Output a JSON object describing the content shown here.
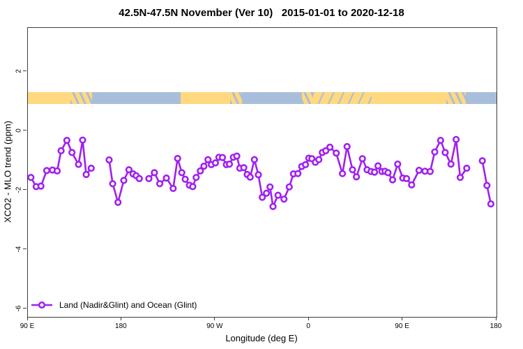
{
  "title": "42.5N-47.5N November (Ver 10)   2015-01-01 to 2020-12-18",
  "colors": {
    "series_line": "#A020F0",
    "marker_fill": "#ffffff",
    "land": "#FFD880",
    "ocean": "#A9BEDA",
    "axis": "#3d3d3d",
    "text": "#000000",
    "background": "#ffffff"
  },
  "legend": {
    "label": "Land (Nadir&Glint) and Ocean (Glint)"
  },
  "chart_data": {
    "type": "line",
    "title": "42.5N-47.5N November (Ver 10)   2015-01-01 to 2020-12-18",
    "xlabel": "Longitude (deg E)",
    "ylabel": "XCO2 - MLO trend (ppm)",
    "xlim": [
      90,
      540
    ],
    "ylim": [
      -6.26,
      3.48
    ],
    "grid": false,
    "legend_position": "bottom-left",
    "x_ticks": [
      {
        "lon": 90,
        "label": "90 E"
      },
      {
        "lon": 180,
        "label": "180"
      },
      {
        "lon": 270,
        "label": "90 W"
      },
      {
        "lon": 360,
        "label": "0"
      },
      {
        "lon": 450,
        "label": "90 E"
      },
      {
        "lon": 540,
        "label": "180"
      }
    ],
    "y_ticks": [
      {
        "value": 2,
        "label": "2"
      },
      {
        "value": 0,
        "label": "0"
      },
      {
        "value": -2,
        "label": "-2"
      },
      {
        "value": -4,
        "label": "-4"
      },
      {
        "value": -6,
        "label": "-6"
      }
    ],
    "map_band": {
      "value_top": 1.32,
      "value_bottom": 0.92,
      "segments": [
        {
          "from": 90,
          "to": 130.8,
          "type": "land"
        },
        {
          "from": 130.8,
          "to": 151.5,
          "type": "mixed"
        },
        {
          "from": 151.5,
          "to": 236.5,
          "type": "ocean"
        },
        {
          "from": 236.5,
          "to": 284.5,
          "type": "land"
        },
        {
          "from": 284.5,
          "to": 295.5,
          "type": "mixed"
        },
        {
          "from": 295.5,
          "to": 353.5,
          "type": "ocean"
        },
        {
          "from": 353.5,
          "to": 364,
          "type": "mixed"
        },
        {
          "from": 364,
          "to": 420,
          "type": "land-speckled"
        },
        {
          "from": 420,
          "to": 492,
          "type": "land"
        },
        {
          "from": 492,
          "to": 510.5,
          "type": "mixed"
        },
        {
          "from": 510.5,
          "to": 540,
          "type": "ocean"
        }
      ]
    },
    "series": [
      {
        "name": "Land (Nadir&Glint) and Ocean (Glint)",
        "marker": "open-circle",
        "points": [
          [
            92.9,
            -1.56
          ],
          [
            98.0,
            -1.87
          ],
          [
            102.5,
            -1.85
          ],
          [
            108.1,
            -1.33
          ],
          [
            113.6,
            -1.31
          ],
          [
            118.1,
            -1.34
          ],
          [
            121.9,
            -0.66
          ],
          [
            127.4,
            -0.31
          ],
          [
            132.3,
            -0.72
          ],
          [
            138.6,
            -1.12
          ],
          [
            142.6,
            -0.3
          ],
          [
            146.0,
            -1.46
          ],
          [
            150.8,
            -1.25
          ],
          null,
          [
            168.0,
            -0.97
          ],
          [
            171.4,
            -1.77
          ],
          [
            176.5,
            -2.4
          ],
          [
            182.1,
            -1.66
          ],
          [
            187.0,
            -1.3
          ],
          [
            191.0,
            -1.44
          ],
          [
            193.9,
            -1.5
          ],
          [
            197.0,
            -1.6
          ],
          null,
          [
            206.2,
            -1.6
          ],
          [
            211.5,
            -1.4
          ],
          [
            216.6,
            -1.77
          ],
          [
            223.0,
            -1.58
          ],
          [
            229.5,
            -1.93
          ],
          [
            233.8,
            -0.92
          ],
          [
            237.8,
            -1.4
          ],
          [
            241.1,
            -1.62
          ],
          [
            245.1,
            -1.82
          ],
          [
            248.3,
            -1.87
          ],
          [
            251.6,
            -1.56
          ],
          [
            255.6,
            -1.34
          ],
          [
            259.0,
            -1.18
          ],
          [
            263.0,
            -0.96
          ],
          [
            266.1,
            -1.13
          ],
          [
            270.1,
            -1.07
          ],
          [
            273.4,
            -0.88
          ],
          [
            276.8,
            -0.89
          ],
          [
            280.6,
            -1.13
          ],
          [
            283.5,
            -1.11
          ],
          [
            287.3,
            -0.88
          ],
          [
            290.6,
            -0.84
          ],
          [
            293.5,
            -1.25
          ],
          [
            297.3,
            -1.23
          ],
          [
            300.6,
            -1.46
          ],
          [
            303.5,
            -1.55
          ],
          [
            307.5,
            -0.96
          ],
          [
            311.3,
            -1.47
          ],
          [
            315.1,
            -2.23
          ],
          [
            319.1,
            -2.09
          ],
          [
            322.5,
            -1.88
          ],
          [
            325.4,
            -2.54
          ],
          [
            330.2,
            -2.16
          ],
          [
            335.9,
            -2.29
          ],
          [
            341.0,
            -1.88
          ],
          [
            345.0,
            -1.44
          ],
          [
            349.3,
            -1.43
          ],
          [
            353.0,
            -1.19
          ],
          [
            356.6,
            -1.13
          ],
          [
            359.7,
            -0.91
          ],
          [
            362.7,
            -0.93
          ],
          [
            366.0,
            -1.05
          ],
          [
            369.4,
            -0.96
          ],
          [
            372.7,
            -0.72
          ],
          [
            376.1,
            -0.66
          ],
          [
            380.0,
            -0.54
          ],
          [
            386.1,
            -0.74
          ],
          [
            392.1,
            -1.43
          ],
          [
            396.5,
            -0.52
          ],
          [
            401.7,
            -1.3
          ],
          [
            405.5,
            -1.54
          ],
          [
            411.2,
            -0.93
          ],
          [
            415.7,
            -1.3
          ],
          [
            419.5,
            -1.36
          ],
          [
            422.9,
            -1.38
          ],
          [
            426.2,
            -1.17
          ],
          [
            430.0,
            -1.36
          ],
          [
            432.9,
            -1.35
          ],
          [
            435.8,
            -1.4
          ],
          [
            440.2,
            -1.64
          ],
          [
            445.1,
            -1.11
          ],
          [
            450.0,
            -1.58
          ],
          [
            453.6,
            -1.6
          ],
          [
            458.5,
            -1.81
          ],
          [
            465.6,
            -1.32
          ],
          [
            471.3,
            -1.35
          ],
          [
            476.3,
            -1.36
          ],
          [
            480.7,
            -0.7
          ],
          [
            486.3,
            -0.31
          ],
          [
            490.7,
            -0.72
          ],
          [
            496.3,
            -1.11
          ],
          [
            501.2,
            -0.28
          ],
          [
            505.2,
            -1.56
          ],
          [
            511.4,
            -1.25
          ],
          null,
          [
            526.4,
            -1.0
          ],
          [
            530.8,
            -1.83
          ],
          [
            534.6,
            -2.45
          ]
        ]
      }
    ]
  }
}
